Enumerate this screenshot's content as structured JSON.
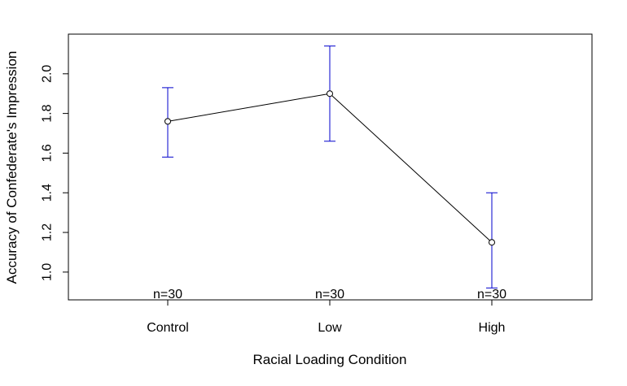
{
  "chart_data": {
    "type": "line",
    "title": "",
    "xlabel": "Racial Loading Condition",
    "ylabel": "Accuracy of Confederate's Impression",
    "categories": [
      "Control",
      "Low",
      "High"
    ],
    "series": [
      {
        "values": [
          1.76,
          1.9,
          1.15
        ],
        "error_lower": [
          1.58,
          1.66,
          0.92
        ],
        "error_upper": [
          1.93,
          2.14,
          1.4
        ],
        "color": "#000000",
        "error_bar_color": "#0000cc",
        "marker": "open-circle"
      }
    ],
    "annotations": [
      "n=30",
      "n=30",
      "n=30"
    ],
    "y_ticks": [
      "1.0",
      "1.2",
      "1.4",
      "1.6",
      "1.8",
      "2.0"
    ],
    "ylim": [
      0.86,
      2.2
    ],
    "grid": false,
    "legend": "none"
  }
}
